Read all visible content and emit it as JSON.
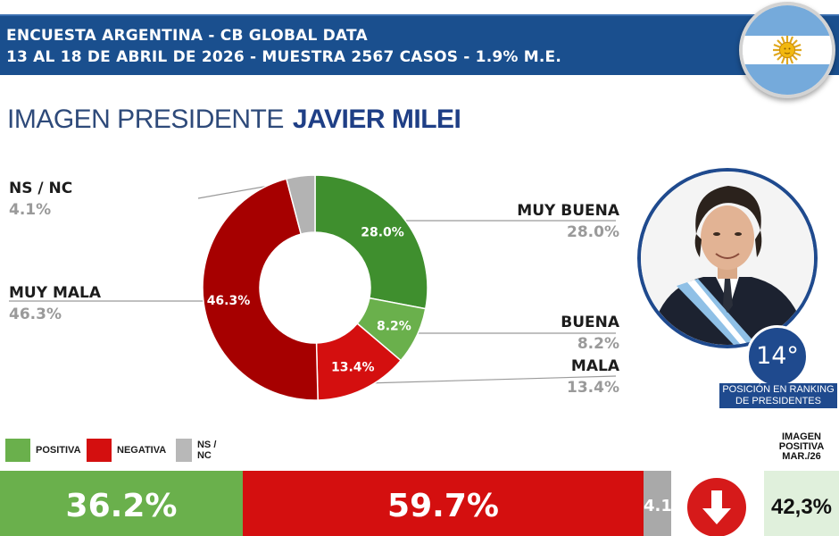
{
  "header": {
    "line1": "ENCUESTA ARGENTINA - CB GLOBAL DATA",
    "line2": "13 AL 18 DE ABRIL DE 2026 - MUESTRA 2567 CASOS - 1.9% M.E."
  },
  "title": {
    "prefix": "IMAGEN PRESIDENTE",
    "name": "JAVIER MILEI"
  },
  "chart_data": [
    {
      "type": "pie",
      "variant": "donut",
      "slices": [
        {
          "label": "MUY BUENA",
          "value": 28.0,
          "value_label": "28.0%",
          "color": "#3f8f2e"
        },
        {
          "label": "BUENA",
          "value": 8.2,
          "value_label": "8.2%",
          "color": "#6ab04c"
        },
        {
          "label": "MALA",
          "value": 13.4,
          "value_label": "13.4%",
          "color": "#d40f0f"
        },
        {
          "label": "MUY MALA",
          "value": 46.3,
          "value_label": "46.3%",
          "color": "#a60000"
        },
        {
          "label": "NS / NC",
          "value": 4.1,
          "value_label": "4.1%",
          "color": "#b3b3b3"
        }
      ]
    },
    {
      "type": "bar",
      "orientation": "horizontal-stacked",
      "series": [
        {
          "name": "POSITIVA",
          "value": 36.2,
          "value_label": "36.2%",
          "color": "#6ab04c"
        },
        {
          "name": "NEGATIVA",
          "value": 59.7,
          "value_label": "59.7%",
          "color": "#d40f0f"
        },
        {
          "name": "NS / NC",
          "value": 4.1,
          "value_label": "4.1%",
          "color": "#a9a9a9"
        }
      ],
      "legend_position": "top-left"
    }
  ],
  "ranking": {
    "position": "14°",
    "caption_line1": "POSICIÓN EN RANKING",
    "caption_line2": "DE PRESIDENTES"
  },
  "previous": {
    "line1": "IMAGEN",
    "line2": "POSITIVA",
    "line3": "MAR./26",
    "value": "42,3%"
  },
  "trend": {
    "icon": "arrow-down-icon",
    "color": "#d61a1a"
  },
  "flag": {
    "icon": "argentina-flag-icon"
  },
  "portrait": {
    "icon": "president-portrait-icon"
  }
}
